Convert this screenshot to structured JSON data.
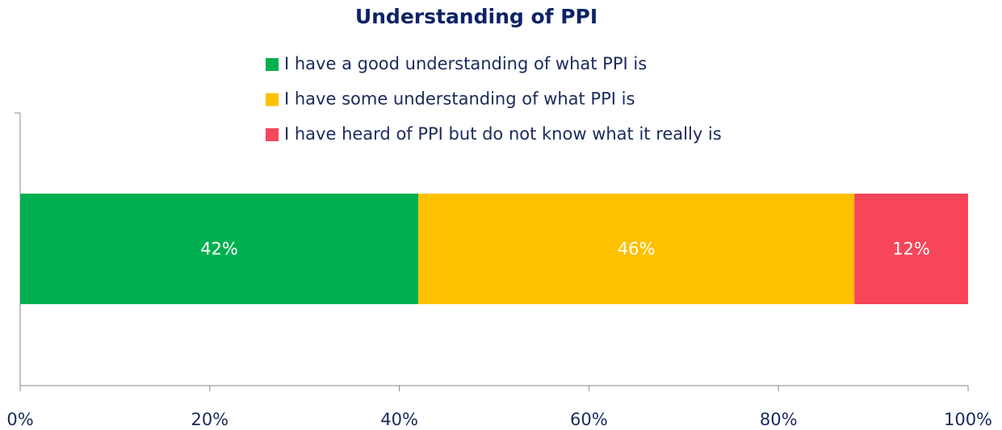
{
  "chart_data": {
    "type": "bar",
    "orientation": "horizontal",
    "stacked": true,
    "title": "Understanding of PPI",
    "categories": [
      null
    ],
    "series": [
      {
        "name": "I have a good understanding of what PPI is",
        "color": "#00b050",
        "values": [
          42
        ],
        "value_labels": [
          "42%"
        ]
      },
      {
        "name": "I have some understanding of what PPI is",
        "color": "#ffc000",
        "values": [
          46
        ],
        "value_labels": [
          "46%"
        ]
      },
      {
        "name": "I have heard of PPI but do not know what it really is",
        "color": "#f7455a",
        "values": [
          12
        ],
        "value_labels": [
          "12%"
        ]
      }
    ],
    "xlim": [
      0,
      100
    ],
    "xticks": [
      {
        "value": 0,
        "label": "0%"
      },
      {
        "value": 20,
        "label": "20%"
      },
      {
        "value": 40,
        "label": "40%"
      },
      {
        "value": 60,
        "label": "60%"
      },
      {
        "value": 80,
        "label": "80%"
      },
      {
        "value": 100,
        "label": "100%"
      }
    ],
    "legend": "top"
  }
}
